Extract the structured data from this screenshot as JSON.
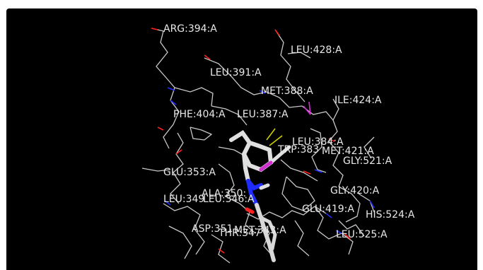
{
  "scene": {
    "background_color": "#000000",
    "frame_color": "#ffffff",
    "bond_color": "#c8c8c8",
    "ligand_color": "#e0e0e0",
    "nitrogen_color": "#1f2cff",
    "oxygen_color": "#ff2020",
    "sulfur_color": "#d0d000",
    "fluorine_color": "#d030d0",
    "label_color": "#e8e8e8"
  },
  "residue_labels": [
    "ARG:394:A",
    "LEU:428:A",
    "LEU:391:A",
    "MET:388:A",
    "ILE:424:A",
    "PHE:404:A",
    "LEU:387:A",
    "LEU:384:A",
    "TRP:383",
    "MET:421:A",
    "GLY:521:A",
    "GLU:353:A",
    "ALA:350:",
    "LEU:349",
    "LEU:346:A",
    "GLY:420:A",
    "GLU:419:A",
    "HIS:524:A",
    "ASP:351",
    "MET:343:A",
    "THR:347",
    "LEU:525:A"
  ]
}
